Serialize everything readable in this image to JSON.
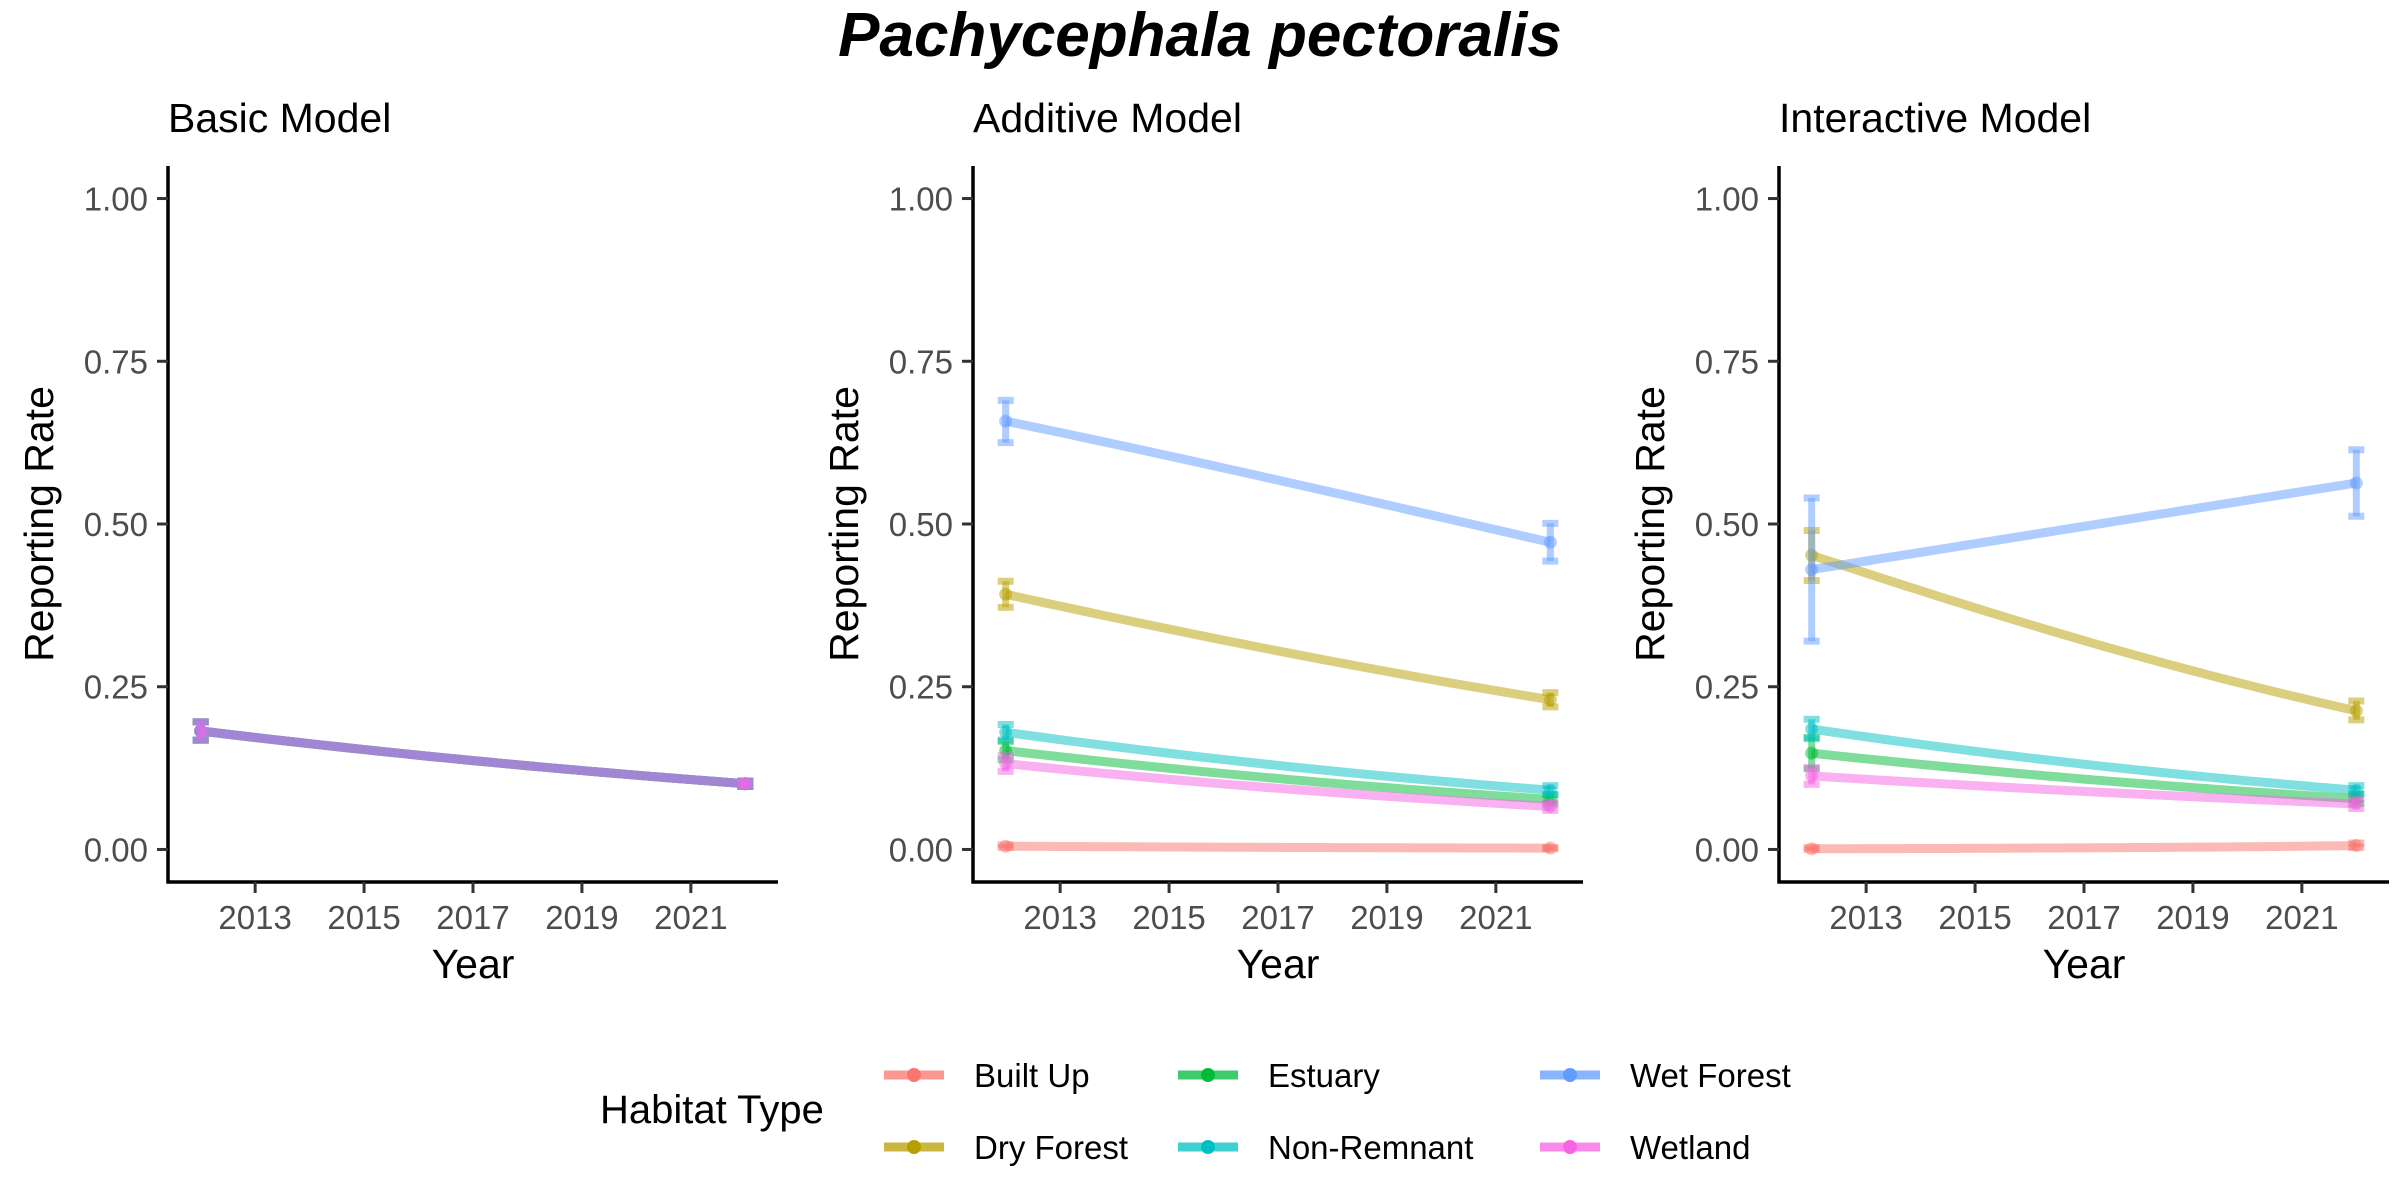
{
  "figure": {
    "title": "Pachycephala pectoralis"
  },
  "legend": {
    "title": "Habitat Type",
    "placement": "bottom",
    "entries": [
      {
        "name": "Built Up",
        "color": "#F8766D"
      },
      {
        "name": "Dry Forest",
        "color": "#B79F00"
      },
      {
        "name": "Estuary",
        "color": "#00BA38"
      },
      {
        "name": "Non-Remnant",
        "color": "#00BFC4"
      },
      {
        "name": "Wet Forest",
        "color": "#619CFF"
      },
      {
        "name": "Wetland",
        "color": "#F564E3"
      }
    ]
  },
  "chart_data": [
    {
      "type": "line",
      "title": "Basic Model",
      "xlabel": "Year",
      "ylabel": "Reporting Rate",
      "xlim": [
        2011.4,
        2022.6
      ],
      "ylim": [
        -0.05,
        1.05
      ],
      "xticks": [
        2013,
        2015,
        2017,
        2019,
        2021
      ],
      "xtick_labels": [
        "2013",
        "2015",
        "2017",
        "2019",
        "2021"
      ],
      "yticks": [
        0,
        0.25,
        0.5,
        0.75,
        1
      ],
      "ytick_labels": [
        "0.00",
        "0.25",
        "0.50",
        "0.75",
        "1.00"
      ],
      "grid": false,
      "x": [
        2012,
        2022
      ],
      "series": [
        {
          "name": "Built Up",
          "color": "#F8766D",
          "values": [
            0.182,
            0.101
          ],
          "lower": [
            0.168,
            0.097
          ],
          "upper": [
            0.196,
            0.105
          ]
        },
        {
          "name": "Dry Forest",
          "color": "#B79F00",
          "values": [
            0.182,
            0.101
          ],
          "lower": [
            0.168,
            0.097
          ],
          "upper": [
            0.196,
            0.105
          ]
        },
        {
          "name": "Estuary",
          "color": "#00BA38",
          "values": [
            0.182,
            0.101
          ],
          "lower": [
            0.168,
            0.097
          ],
          "upper": [
            0.196,
            0.105
          ]
        },
        {
          "name": "Non-Remnant",
          "color": "#00BFC4",
          "values": [
            0.182,
            0.101
          ],
          "lower": [
            0.168,
            0.097
          ],
          "upper": [
            0.196,
            0.105
          ]
        },
        {
          "name": "Wet Forest",
          "color": "#619CFF",
          "values": [
            0.182,
            0.101
          ],
          "lower": [
            0.168,
            0.097
          ],
          "upper": [
            0.196,
            0.105
          ]
        },
        {
          "name": "Wetland",
          "color": "#F564E3",
          "values": [
            0.182,
            0.101
          ],
          "lower": [
            0.168,
            0.097
          ],
          "upper": [
            0.196,
            0.105
          ]
        }
      ]
    },
    {
      "type": "line",
      "title": "Additive Model",
      "xlabel": "Year",
      "ylabel": "Reporting Rate",
      "xlim": [
        2011.4,
        2022.6
      ],
      "ylim": [
        -0.05,
        1.05
      ],
      "xticks": [
        2013,
        2015,
        2017,
        2019,
        2021
      ],
      "xtick_labels": [
        "2013",
        "2015",
        "2017",
        "2019",
        "2021"
      ],
      "yticks": [
        0,
        0.25,
        0.5,
        0.75,
        1
      ],
      "ytick_labels": [
        "0.00",
        "0.25",
        "0.50",
        "0.75",
        "1.00"
      ],
      "grid": false,
      "x": [
        2012,
        2022
      ],
      "series": [
        {
          "name": "Built Up",
          "color": "#F8766D",
          "values": [
            0.005,
            0.002
          ],
          "lower": [
            0.003,
            0.001
          ],
          "upper": [
            0.007,
            0.003
          ]
        },
        {
          "name": "Dry Forest",
          "color": "#B79F00",
          "values": [
            0.392,
            0.23
          ],
          "lower": [
            0.372,
            0.219
          ],
          "upper": [
            0.412,
            0.241
          ]
        },
        {
          "name": "Estuary",
          "color": "#00BA38",
          "values": [
            0.152,
            0.077
          ],
          "lower": [
            0.138,
            0.07
          ],
          "upper": [
            0.166,
            0.084
          ]
        },
        {
          "name": "Non-Remnant",
          "color": "#00BFC4",
          "values": [
            0.18,
            0.091
          ],
          "lower": [
            0.168,
            0.084
          ],
          "upper": [
            0.192,
            0.098
          ]
        },
        {
          "name": "Wet Forest",
          "color": "#619CFF",
          "values": [
            0.658,
            0.472
          ],
          "lower": [
            0.625,
            0.443
          ],
          "upper": [
            0.69,
            0.501
          ]
        },
        {
          "name": "Wetland",
          "color": "#F564E3",
          "values": [
            0.132,
            0.066
          ],
          "lower": [
            0.12,
            0.06
          ],
          "upper": [
            0.144,
            0.072
          ]
        }
      ]
    },
    {
      "type": "line",
      "title": "Interactive Model",
      "xlabel": "Year",
      "ylabel": "Reporting Rate",
      "xlim": [
        2011.4,
        2022.6
      ],
      "ylim": [
        -0.05,
        1.05
      ],
      "xticks": [
        2013,
        2015,
        2017,
        2019,
        2021
      ],
      "xtick_labels": [
        "2013",
        "2015",
        "2017",
        "2019",
        "2021"
      ],
      "yticks": [
        0,
        0.25,
        0.5,
        0.75,
        1
      ],
      "ytick_labels": [
        "0.00",
        "0.25",
        "0.50",
        "0.75",
        "1.00"
      ],
      "grid": false,
      "x": [
        2012,
        2022
      ],
      "series": [
        {
          "name": "Built Up",
          "color": "#F8766D",
          "values": [
            0.001,
            0.006
          ],
          "lower": [
            0.0,
            0.003
          ],
          "upper": [
            0.003,
            0.01
          ]
        },
        {
          "name": "Dry Forest",
          "color": "#B79F00",
          "values": [
            0.452,
            0.213
          ],
          "lower": [
            0.413,
            0.199
          ],
          "upper": [
            0.49,
            0.228
          ]
        },
        {
          "name": "Estuary",
          "color": "#00BA38",
          "values": [
            0.148,
            0.078
          ],
          "lower": [
            0.124,
            0.071
          ],
          "upper": [
            0.172,
            0.085
          ]
        },
        {
          "name": "Non-Remnant",
          "color": "#00BFC4",
          "values": [
            0.185,
            0.091
          ],
          "lower": [
            0.17,
            0.085
          ],
          "upper": [
            0.2,
            0.098
          ]
        },
        {
          "name": "Wet Forest",
          "color": "#619CFF",
          "values": [
            0.43,
            0.563
          ],
          "lower": [
            0.32,
            0.512
          ],
          "upper": [
            0.54,
            0.614
          ]
        },
        {
          "name": "Wetland",
          "color": "#F564E3",
          "values": [
            0.113,
            0.07
          ],
          "lower": [
            0.1,
            0.063
          ],
          "upper": [
            0.126,
            0.077
          ]
        }
      ]
    }
  ]
}
